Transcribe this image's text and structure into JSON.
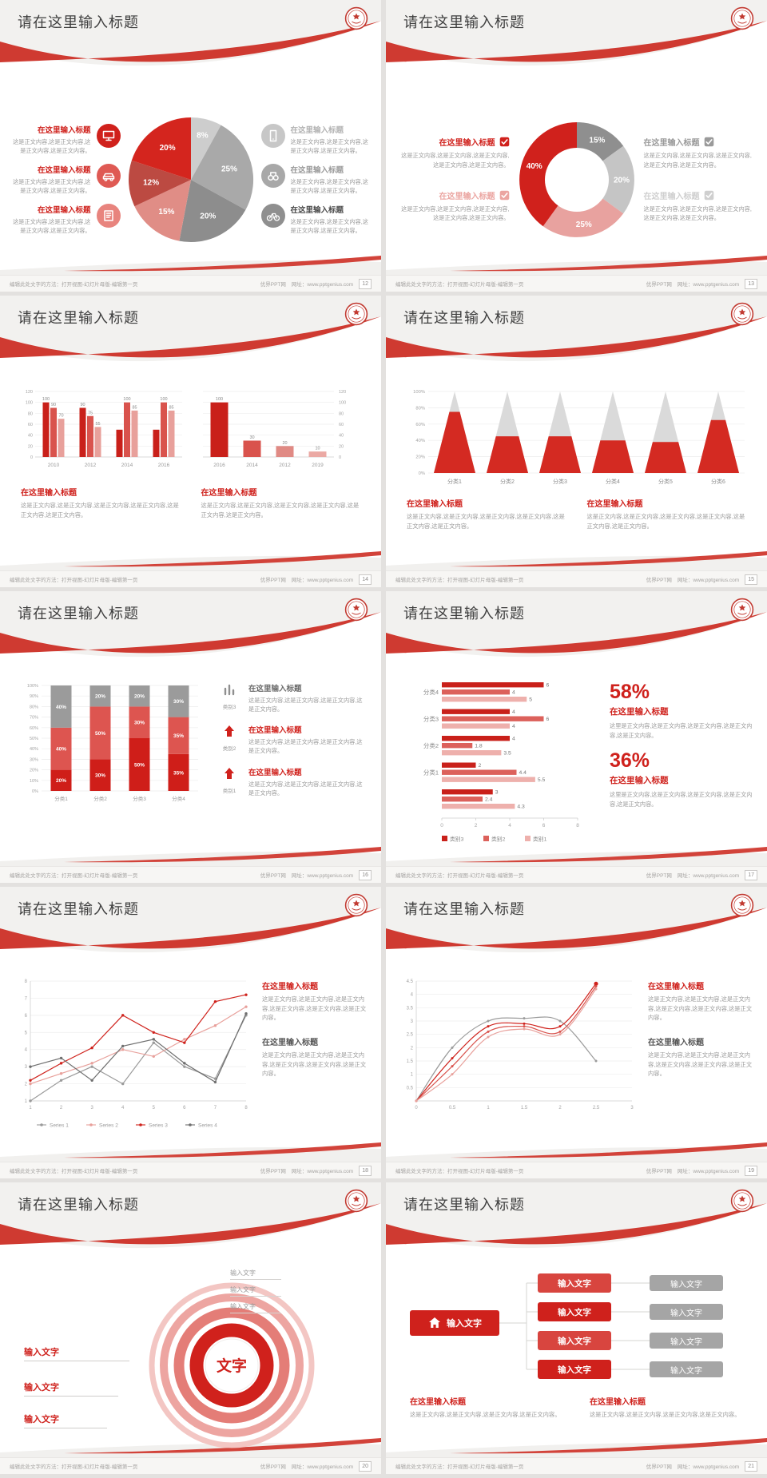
{
  "common": {
    "slide_title": "请在这里输入标题",
    "section_title": "在这里输入标题",
    "body2": "这是正文内容,这是正文内容,这是正文内容,这是正文内容。",
    "body3": "这是正文内容,这是正文内容,这是正文内容,这是正文内容,这是正文内容。",
    "body4": "这是正文内容,这是正文内容,这是正文内容,这是正文内容,这是正文内容,这是正文内容。",
    "input_text": "输入文字",
    "center_text": "文字",
    "footer_left": "编辑此处文字的方法：打开视图-幻灯片母版-编辑第一页",
    "footer_site": "优界PPT网",
    "footer_url": "网址：www.pptgenius.com"
  },
  "colors": {
    "accent": "#cf211c",
    "red_mid": "#d9534d",
    "red_light": "#e8a09b",
    "gray_dark": "#8a8a8a",
    "gray_mid": "#a5a5a5",
    "gray_light": "#c9c9c9",
    "title_text": "#3e3e3e",
    "body_text": "#9b9b9b"
  },
  "chart_data": [
    {
      "type": "pie",
      "values": [
        8,
        25,
        20,
        15,
        12,
        20
      ],
      "labels": [
        "8%",
        "25%",
        "20%",
        "15%",
        "12%",
        "20%"
      ],
      "colors": [
        "#cdcdcd",
        "#a9a9a9",
        "#8d8d8d",
        "#e08d86",
        "#bc4a42",
        "#d4251e"
      ]
    },
    {
      "type": "pie",
      "subtype": "donut",
      "values": [
        15,
        20,
        25,
        40
      ],
      "labels": [
        "15%",
        "20%",
        "25%",
        "40%"
      ],
      "colors": [
        "#8f8f8f",
        "#c5c5c5",
        "#e8a29f",
        "#d0211c"
      ]
    },
    {
      "type": "bar",
      "categories": [
        "2010",
        "2012",
        "2014",
        "2016"
      ],
      "yticks": [
        0,
        20,
        40,
        60,
        80,
        100,
        120
      ],
      "ylim": [
        0,
        120
      ],
      "series": [
        {
          "name": "s1",
          "color": "#c9201a",
          "values": [
            100,
            90,
            50,
            50
          ],
          "labels": [
            "100",
            "90",
            null,
            null
          ]
        },
        {
          "name": "s2",
          "color": "#d9534d",
          "values": [
            90,
            75,
            100,
            100
          ],
          "labels": [
            "90",
            "75",
            "100",
            "100"
          ]
        },
        {
          "name": "s3",
          "color": "#e8a09b",
          "values": [
            70,
            55,
            85,
            85
          ],
          "labels": [
            "70",
            "55",
            "85",
            "85"
          ]
        }
      ]
    },
    {
      "type": "bar",
      "categories": [
        "2016",
        "2014",
        "2012",
        "2019"
      ],
      "values": [
        100,
        30,
        20,
        10
      ],
      "labels": [
        "100",
        "30",
        "20",
        "10"
      ],
      "yticks": [
        0,
        20,
        40,
        60,
        80,
        100,
        120
      ],
      "ylim": [
        0,
        120
      ],
      "colors": [
        "#c9201a",
        "#d9534d",
        "#e08a84",
        "#eba9a4"
      ]
    },
    {
      "type": "cone",
      "categories": [
        "分类1",
        "分类2",
        "分类3",
        "分类4",
        "分类5",
        "分类6"
      ],
      "red_percent": [
        75,
        45,
        45,
        40,
        38,
        65
      ],
      "yticks": [
        "0%",
        "20%",
        "40%",
        "60%",
        "80%",
        "100%"
      ]
    },
    {
      "type": "stacked-bar",
      "categories": [
        "分类1",
        "分类2",
        "分类3",
        "分类4"
      ],
      "yticks": [
        "0%",
        "10%",
        "20%",
        "30%",
        "40%",
        "50%",
        "60%",
        "70%",
        "80%",
        "90%",
        "100%"
      ],
      "series": [
        {
          "name": "bottom",
          "color": "#cf1e19",
          "values": [
            20,
            30,
            50,
            35
          ],
          "labels": [
            "20%",
            "30%",
            "50%",
            "35%"
          ]
        },
        {
          "name": "middle",
          "color": "#dd5550",
          "values": [
            40,
            50,
            30,
            35
          ],
          "labels": [
            "40%",
            "50%",
            "30%",
            "35%"
          ]
        },
        {
          "name": "top",
          "color": "#9b9b9b",
          "values": [
            40,
            20,
            20,
            30
          ],
          "labels": [
            "40%",
            "20%",
            "20%",
            "30%"
          ]
        }
      ]
    },
    {
      "type": "hbar",
      "xticks": [
        0,
        2,
        4,
        6,
        8
      ],
      "xlim": [
        0,
        8
      ],
      "colors": [
        "#c9201a",
        "#dc615b",
        "#eeb0ac"
      ],
      "legend": [
        "类别3",
        "类别2",
        "类别1"
      ],
      "groups": [
        {
          "label": "分类4",
          "values": [
            6,
            4,
            5
          ]
        },
        {
          "label": "分类3",
          "values": [
            4,
            6,
            4
          ]
        },
        {
          "label": "分类2",
          "values": [
            4,
            1.8,
            3.5
          ]
        },
        {
          "label": "分类1",
          "values": [
            2,
            4.4,
            5.5
          ]
        },
        {
          "label": "",
          "values": [
            3,
            2.4,
            4.3
          ]
        }
      ]
    },
    {
      "type": "line",
      "x": [
        1,
        2,
        3,
        4,
        5,
        6,
        7,
        8
      ],
      "yticks": [
        1,
        2,
        3,
        4,
        5,
        6,
        7,
        8
      ],
      "ylim": [
        1,
        8
      ],
      "series": [
        {
          "name": "Series 1",
          "color": "#9b9b9b",
          "values": [
            1,
            2.2,
            3,
            2,
            4.4,
            3,
            2.3,
            6
          ]
        },
        {
          "name": "Series 2",
          "color": "#e8a09b",
          "values": [
            2,
            2.6,
            3.2,
            4,
            3.6,
            4.6,
            5.4,
            6.5
          ]
        },
        {
          "name": "Series 3",
          "color": "#cf221c",
          "values": [
            2.2,
            3.2,
            4.1,
            6,
            5,
            4.4,
            6.8,
            7.2
          ]
        },
        {
          "name": "Series 4",
          "color": "#6f6f6f",
          "values": [
            3,
            3.5,
            2.2,
            4.2,
            4.6,
            3.2,
            2.1,
            6.1
          ]
        }
      ]
    },
    {
      "type": "line",
      "subtype": "smooth",
      "x": [
        0,
        0.5,
        1,
        1.5,
        2,
        2.5
      ],
      "xticks": [
        "0",
        "0.5",
        "1",
        "1.5",
        "2",
        "2.5",
        "3"
      ],
      "xlim": [
        0,
        3
      ],
      "yticks": [
        "0.5",
        "1",
        "1.5",
        "2",
        "2.5",
        "3",
        "3.5",
        "4",
        "4.5"
      ],
      "ylim": [
        0,
        4.5
      ],
      "series": [
        {
          "name": "gray",
          "color": "#9b9b9b",
          "values": [
            0,
            2.0,
            3.0,
            3.1,
            3.0,
            1.5
          ]
        },
        {
          "name": "red1",
          "color": "#cf221c",
          "values": [
            0,
            1.6,
            2.8,
            2.9,
            2.8,
            4.4
          ]
        },
        {
          "name": "red2",
          "color": "#d9534d",
          "values": [
            0,
            1.3,
            2.6,
            2.8,
            2.6,
            4.3
          ]
        },
        {
          "name": "red3",
          "color": "#e8a09b",
          "values": [
            0,
            1.0,
            2.4,
            2.7,
            2.5,
            4.2
          ]
        }
      ]
    }
  ],
  "slides": [
    {
      "page": "12",
      "type": "pie",
      "chart": 0,
      "left": [
        {
          "icon": "monitor-icon",
          "bg": "#d0211c",
          "tc": "#cf211c"
        },
        {
          "icon": "car-icon",
          "bg": "#df5a54",
          "tc": "#cf211c"
        },
        {
          "icon": "book-icon",
          "bg": "#e8847e",
          "tc": "#cf211c"
        }
      ],
      "right": [
        {
          "icon": "phone-icon",
          "bg": "#c7c7c7",
          "tc": "#b3b3b3"
        },
        {
          "icon": "binoculars-icon",
          "bg": "#a8a8a8",
          "tc": "#9a9a9a"
        },
        {
          "icon": "bicycle-icon",
          "bg": "#8f8f8f",
          "tc": "#4a4a4a"
        }
      ]
    },
    {
      "page": "13",
      "type": "donut",
      "chart": 1,
      "left": [
        {
          "tc": "#d0211c"
        },
        {
          "tc": "#eba5a1"
        }
      ],
      "right": [
        {
          "tc": "#9a9a9a"
        },
        {
          "tc": "#cfcfcf"
        }
      ]
    },
    {
      "page": "14",
      "type": "bars",
      "chartA": 2,
      "chartB": 3
    },
    {
      "page": "15",
      "type": "cones",
      "chart": 4
    },
    {
      "page": "16",
      "type": "stacked",
      "chart": 5,
      "items": [
        {
          "icon": "bar-chart-icon",
          "label": "类别3",
          "tc": "#6a6a6a",
          "ic": "#8f8f8f"
        },
        {
          "icon": "arrow-up-icon",
          "label": "类别2",
          "tc": "#d0211c",
          "ic": "#d0211c"
        },
        {
          "icon": "arrow-up-icon",
          "label": "类别1",
          "tc": "#d0211c",
          "ic": "#d0211c"
        }
      ]
    },
    {
      "page": "17",
      "type": "hbars",
      "chart": 6,
      "stats": [
        {
          "value": "58%"
        },
        {
          "value": "36%"
        }
      ],
      "stat_body": "这里是正文内容,这是正文内容,这是正文内容,这是正文内容,这是正文内容。"
    },
    {
      "page": "18",
      "type": "lines",
      "chart": 7
    },
    {
      "page": "19",
      "type": "curves",
      "chart": 8
    },
    {
      "page": "20",
      "type": "rings",
      "rings": {
        "colors": [
          "#f3c6c3",
          "#eda5a1",
          "#e47d77",
          "#d0211c"
        ]
      }
    },
    {
      "page": "21",
      "type": "flow",
      "flow": {
        "mid_colors": [
          "#d8453f",
          "#cf211c",
          "#d8453f",
          "#cf211c"
        ],
        "right_color": "#a5a5a5"
      }
    }
  ]
}
